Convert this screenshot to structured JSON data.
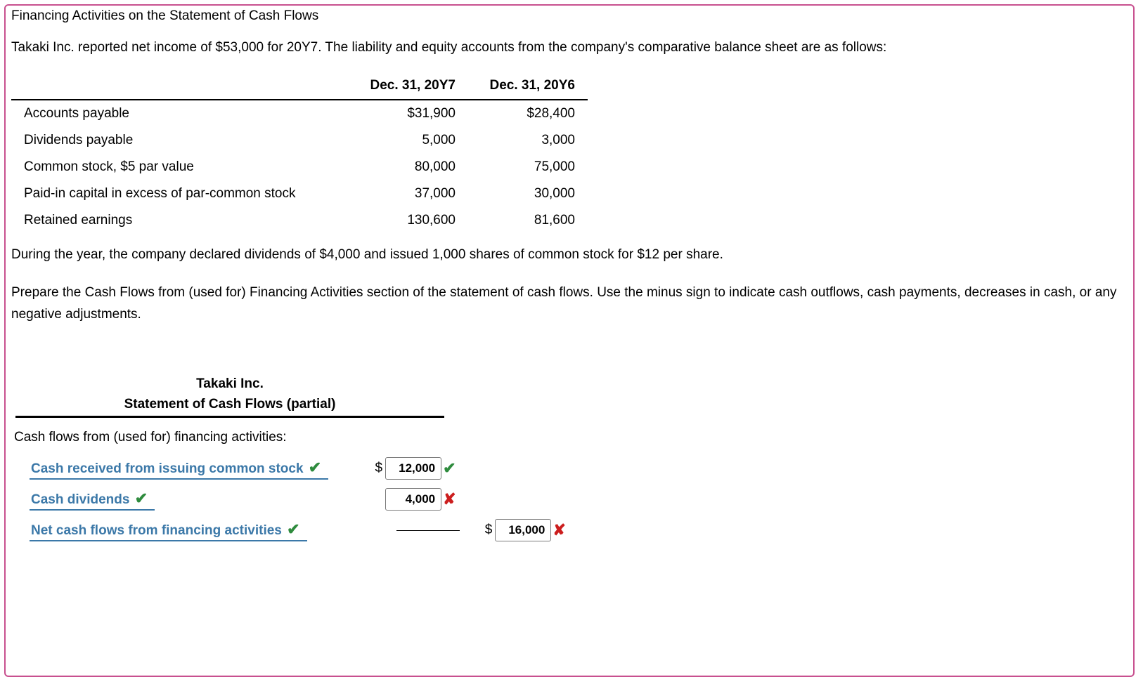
{
  "title": "Financing Activities on the Statement of Cash Flows",
  "intro": "Takaki Inc. reported net income of $53,000 for 20Y7. The liability and equity accounts from the company's comparative balance sheet are as follows:",
  "balance_sheet": {
    "columns": [
      "",
      "Dec. 31, 20Y7",
      "Dec. 31, 20Y6"
    ],
    "rows": [
      {
        "acct": "Accounts payable",
        "y7": "$31,900",
        "y6": "$28,400"
      },
      {
        "acct": "Dividends payable",
        "y7": "5,000",
        "y6": "3,000"
      },
      {
        "acct": "Common stock, $5 par value",
        "y7": "80,000",
        "y6": "75,000"
      },
      {
        "acct": "Paid-in capital in excess of par-common stock",
        "y7": "37,000",
        "y6": "30,000"
      },
      {
        "acct": "Retained earnings",
        "y7": "130,600",
        "y6": "81,600"
      }
    ]
  },
  "during_text": "During the year, the company declared dividends of $4,000 and issued 1,000 shares of common stock for $12 per share.",
  "prepare_text": "Prepare the Cash Flows from (used for) Financing Activities section of the statement of cash flows. Use the minus sign to indicate cash outflows, cash payments, decreases in cash, or any negative adjustments.",
  "scf": {
    "company": "Takaki Inc.",
    "stmt_title": "Statement of Cash Flows (partial)",
    "section_label": "Cash flows from (used for) financing activities:",
    "row1": {
      "label": "Cash received from issuing common stock",
      "label_correct": true,
      "val": "12,000",
      "val_correct": true,
      "has_dollar": true,
      "col": "col2"
    },
    "row2": {
      "label": "Cash dividends",
      "label_correct": true,
      "val": "4,000",
      "val_correct": false,
      "has_dollar": false,
      "col": "col2"
    },
    "row3": {
      "label": "Net cash flows from financing activities",
      "label_correct": true,
      "val": "16,000",
      "val_correct": false,
      "has_dollar": true,
      "col": "col3"
    }
  },
  "glyphs": {
    "check": "✔",
    "cross": "✘",
    "dollar": "$"
  },
  "colors": {
    "frame_border": "#c8508f",
    "link_blue": "#3b78a8",
    "check_green": "#2e8b3d",
    "cross_red": "#cc1e1e"
  }
}
